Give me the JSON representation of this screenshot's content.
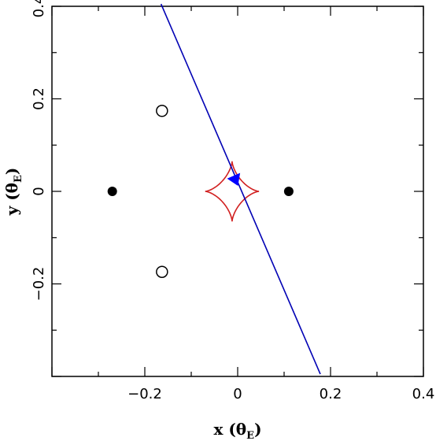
{
  "chart_data": {
    "type": "scatter",
    "xlabel": "x (θE)",
    "ylabel": "y (θE)",
    "xlabel_main": "x (θ",
    "xlabel_sub": "E",
    "xlabel_end": ")",
    "ylabel_main": "y (θ",
    "ylabel_sub": "E",
    "ylabel_end": ")",
    "xlim": [
      -0.4,
      0.4
    ],
    "ylim": [
      -0.4,
      0.4
    ],
    "xticks": [
      -0.2,
      0,
      0.2,
      0.4
    ],
    "xtick_labels": [
      "−0.2",
      "0",
      "0.2",
      "0.4"
    ],
    "yticks": [
      -0.2,
      0,
      0.2,
      0.4
    ],
    "ytick_labels": [
      "−0.2",
      "0",
      "0.2",
      "0.4"
    ],
    "grid": false,
    "lenses": [
      {
        "x": -0.27,
        "y": 0
      },
      {
        "x": 0.11,
        "y": 0
      }
    ],
    "images": [
      {
        "x": -0.163,
        "y": 0.174
      },
      {
        "x": -0.163,
        "y": -0.174
      }
    ],
    "caustic": {
      "center": [
        -0.012,
        0
      ],
      "cusps": [
        [
          -0.07,
          0
        ],
        [
          0.046,
          0
        ],
        [
          -0.012,
          0.065
        ],
        [
          -0.012,
          -0.065
        ]
      ],
      "color": "#d11f1f"
    },
    "source_trajectory": {
      "points": [
        [
          -0.165,
          0.405
        ],
        [
          0.178,
          -0.395
        ]
      ],
      "color": "#0000b4"
    },
    "source": {
      "x": -0.005,
      "y": 0.025,
      "direction": [
        0.343,
        -0.8
      ],
      "color": "#0000ff"
    }
  }
}
